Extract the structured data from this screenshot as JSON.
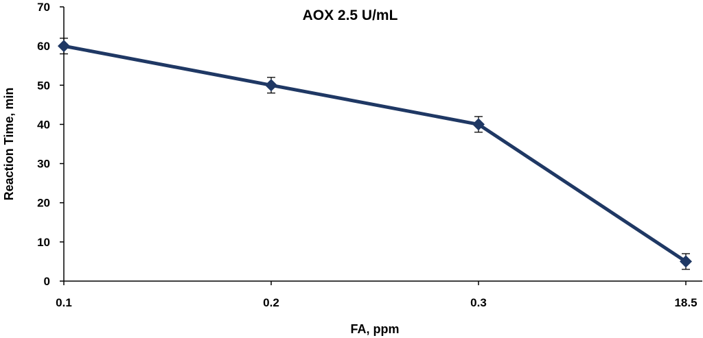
{
  "chart_data": {
    "type": "line",
    "title": "AOX 2.5 U/mL",
    "xlabel": "FA, ppm",
    "ylabel": "Reaction Time, min",
    "categories": [
      "0.1",
      "0.2",
      "0.3",
      "18.5"
    ],
    "series": [
      {
        "values": [
          60,
          50,
          40,
          5
        ],
        "error": [
          2,
          2,
          2,
          2
        ],
        "color": "#1f3864",
        "marker": "diamond"
      }
    ],
    "ylim": [
      0,
      70
    ],
    "yticks": [
      0,
      10,
      20,
      30,
      40,
      50,
      60,
      70
    ],
    "grid": false,
    "legend": "none"
  }
}
